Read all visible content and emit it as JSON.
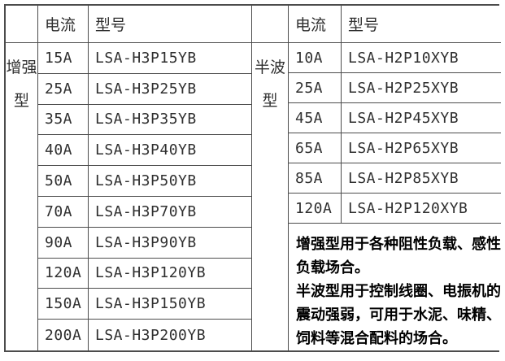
{
  "colors": {
    "background": "#ffffff",
    "border": "#4c4c4c",
    "cell_text": "#2f2f2f",
    "note_text": "#000000"
  },
  "table": {
    "left": {
      "type_label": "增强型",
      "header": {
        "current": "电流",
        "model": "型号"
      },
      "rows": [
        {
          "current": "15A",
          "model": "LSA-H3P15YB"
        },
        {
          "current": "25A",
          "model": "LSA-H3P25YB"
        },
        {
          "current": "35A",
          "model": "LSA-H3P35YB"
        },
        {
          "current": "40A",
          "model": "LSA-H3P40YB"
        },
        {
          "current": "50A",
          "model": "LSA-H3P50YB"
        },
        {
          "current": "70A",
          "model": "LSA-H3P70YB"
        },
        {
          "current": "90A",
          "model": "LSA-H3P90YB"
        },
        {
          "current": "120A",
          "model": "LSA-H3P120YB"
        },
        {
          "current": "150A",
          "model": "LSA-H3P150YB"
        },
        {
          "current": "200A",
          "model": "LSA-H3P200YB"
        }
      ]
    },
    "right": {
      "type_label": "半波型",
      "header": {
        "current": "电流",
        "model": "型号"
      },
      "rows": [
        {
          "current": "10A",
          "model": "LSA-H2P10XYB"
        },
        {
          "current": "25A",
          "model": "LSA-H2P25XYB"
        },
        {
          "current": "45A",
          "model": "LSA-H2P45XYB"
        },
        {
          "current": "65A",
          "model": "LSA-H2P65XYB"
        },
        {
          "current": "85A",
          "model": "LSA-H2P85XYB"
        },
        {
          "current": "120A",
          "model": "LSA-H2P120XYB"
        }
      ],
      "note_lines": [
        "增强型用于各种阻性负载、感性",
        "负载场合。",
        "半波型用于控制线圈、电振机的",
        "震动强弱，可用于水泥、味精、",
        "饲料等混合配料的场合。"
      ]
    }
  }
}
